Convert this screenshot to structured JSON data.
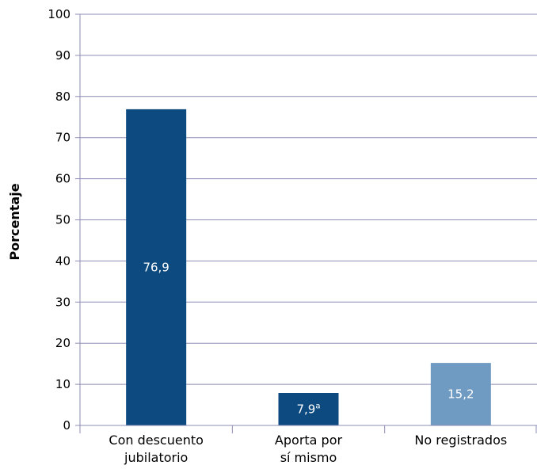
{
  "chart_data": {
    "type": "bar",
    "ylabel": "Porcentaje",
    "xlabel": "",
    "ylim": [
      0,
      100
    ],
    "yticks": [
      0,
      10,
      20,
      30,
      40,
      50,
      60,
      70,
      80,
      90,
      100
    ],
    "grid": true,
    "categories": [
      [
        "Con descuento",
        "jubilatorio"
      ],
      [
        "Aporta por",
        "sí mismo"
      ],
      [
        "No registrados"
      ]
    ],
    "values": [
      76.9,
      7.9,
      15.2
    ],
    "data_labels": [
      "76,9",
      "7,9",
      "15,2"
    ],
    "data_label_superscripts": [
      "",
      "a",
      ""
    ],
    "colors": [
      "#0d4a80",
      "#0d4a80",
      "#6f9ac2"
    ]
  }
}
